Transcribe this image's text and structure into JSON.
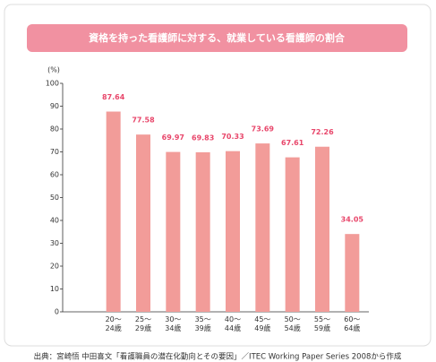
{
  "chart_data": {
    "type": "bar",
    "title": "資格を持った看護師に対する、就業している看護師の割合",
    "y_label": "(%)",
    "categories": [
      "20～24歳",
      "25～29歳",
      "30～34歳",
      "35～39歳",
      "40～44歳",
      "45～49歳",
      "50～54歳",
      "55～59歳",
      "60～64歳"
    ],
    "values": [
      87.64,
      77.58,
      69.97,
      69.83,
      70.33,
      73.69,
      67.61,
      72.26,
      34.05
    ],
    "color": "#f29c99",
    "label_color": "#e8476b",
    "ylim": [
      0,
      100
    ],
    "yticks": [
      0,
      10,
      20,
      30,
      40,
      50,
      60,
      70,
      80,
      90,
      100
    ],
    "grid": false,
    "source": "出典：宮崎悟 中田喜文「看護職員の潜在化動向とその要因」／ITEC Working Paper Series 2008から作成"
  }
}
